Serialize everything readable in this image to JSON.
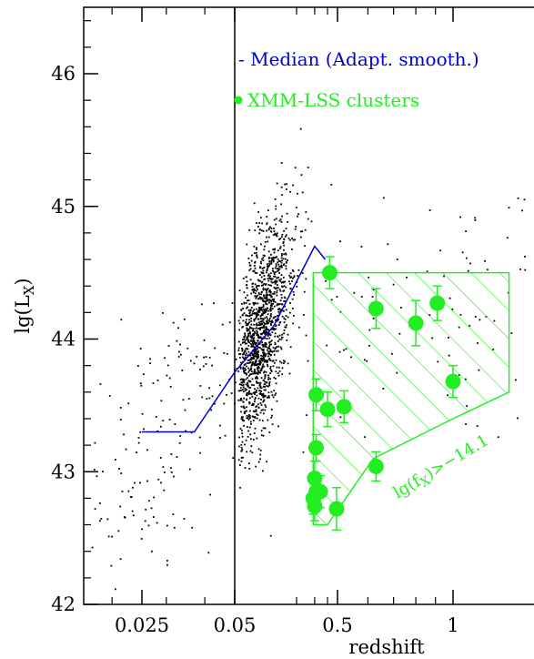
{
  "chart_data": {
    "type": "scatter",
    "xlabel": "redshift",
    "ylabel": "lg(L_X)",
    "ylim": [
      42,
      46.5
    ],
    "x_scale": "log",
    "x_ticks": [
      {
        "value": 0.025,
        "label": "0.025"
      },
      {
        "value": 0.05,
        "label": "0.05"
      },
      {
        "value": 0.5,
        "label": "0.5"
      },
      {
        "value": 1,
        "label": "1"
      }
    ],
    "y_ticks": [
      {
        "value": 42,
        "label": "42"
      },
      {
        "value": 43,
        "label": "43"
      },
      {
        "value": 44,
        "label": "44"
      },
      {
        "value": 45,
        "label": "45"
      },
      {
        "value": 46,
        "label": "46"
      }
    ],
    "colors": {
      "median": "#0000cc",
      "clusters": "#22ee22",
      "points": "#000000",
      "region": "#22ee22"
    },
    "legend": [
      {
        "label": "- Median (Adapt. smooth.)",
        "color": "#0000cc",
        "marker": "line"
      },
      {
        "label": "XMM-LSS clusters",
        "color": "#22ee22",
        "marker": "dot"
      }
    ],
    "annotation": "lg(f_X)>-14.1",
    "vertical_line_x": 0.05,
    "median": {
      "name": "- Median (Adapt. smooth.)",
      "points": [
        [
          0.025,
          43.3
        ],
        [
          0.037,
          43.3
        ],
        [
          0.05,
          43.75
        ],
        [
          0.12,
          44.1
        ],
        [
          0.3,
          44.7
        ],
        [
          0.38,
          44.6
        ]
      ]
    },
    "clusters": {
      "name": "XMM-LSS clusters",
      "points": [
        {
          "x": 0.42,
          "y": 44.5,
          "err": 0.12
        },
        {
          "x": 0.63,
          "y": 44.23,
          "err": 0.15
        },
        {
          "x": 0.8,
          "y": 44.12,
          "err": 0.17
        },
        {
          "x": 0.91,
          "y": 44.27,
          "err": 0.13
        },
        {
          "x": 1.0,
          "y": 43.68,
          "err": 0.12
        },
        {
          "x": 0.31,
          "y": 43.58,
          "err": 0.12
        },
        {
          "x": 0.4,
          "y": 43.47,
          "err": 0.13
        },
        {
          "x": 0.52,
          "y": 43.49,
          "err": 0.12
        },
        {
          "x": 0.31,
          "y": 43.18,
          "err": 0.1
        },
        {
          "x": 0.63,
          "y": 43.04,
          "err": 0.11
        },
        {
          "x": 0.3,
          "y": 42.95,
          "err": 0.13
        },
        {
          "x": 0.31,
          "y": 42.85,
          "err": 0.12
        },
        {
          "x": 0.34,
          "y": 42.85,
          "err": 0.12
        },
        {
          "x": 0.29,
          "y": 42.8,
          "err": 0.12
        },
        {
          "x": 0.3,
          "y": 42.74,
          "err": 0.11
        },
        {
          "x": 0.49,
          "y": 42.72,
          "err": 0.16
        }
      ]
    },
    "selection_region": [
      [
        0.29,
        44.5
      ],
      [
        1.4,
        44.5
      ],
      [
        1.4,
        43.6
      ],
      [
        1.0,
        43.4
      ],
      [
        0.62,
        43.1
      ],
      [
        0.4,
        42.6
      ],
      [
        0.29,
        42.6
      ]
    ],
    "field_points_seed": 20240
  }
}
